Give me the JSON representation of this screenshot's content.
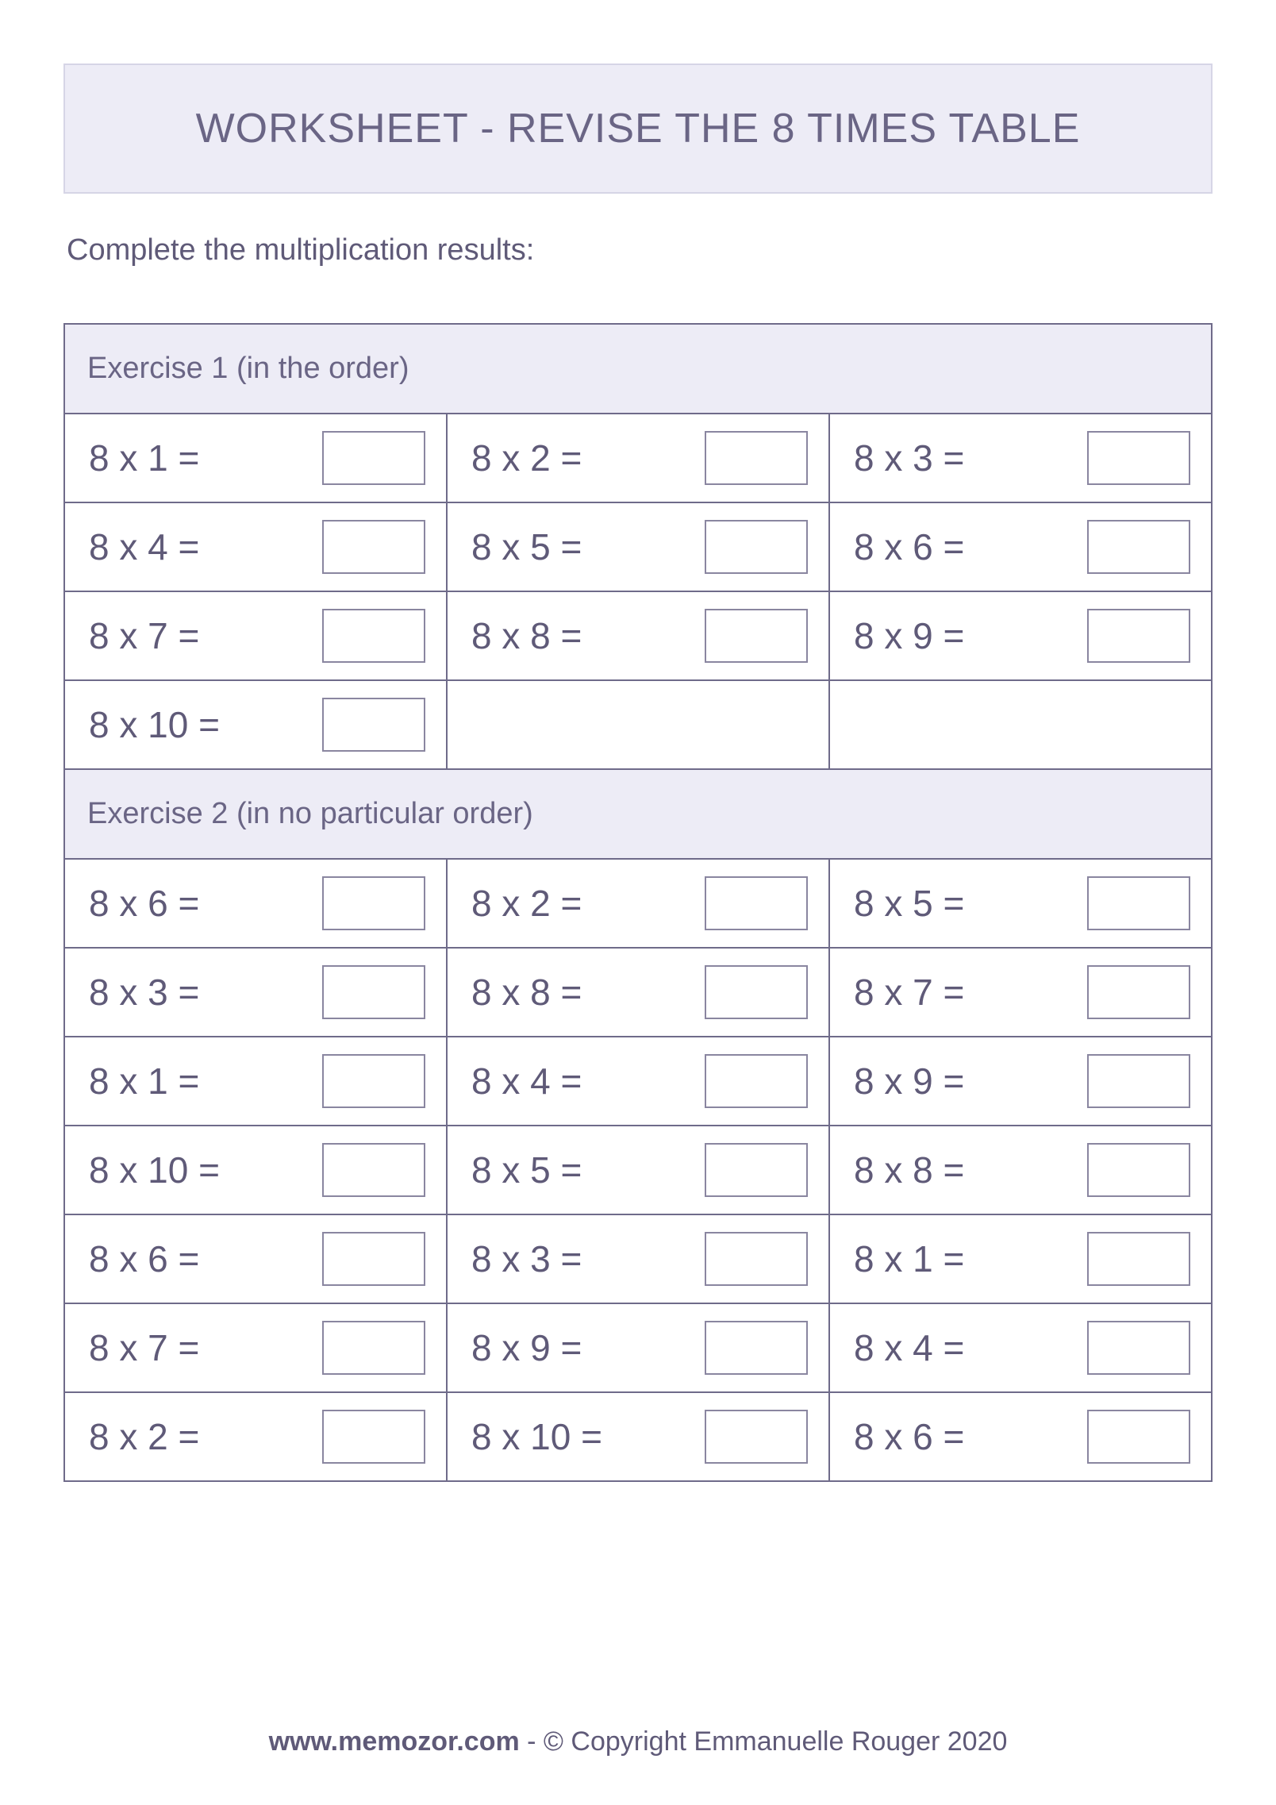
{
  "colors": {
    "page_bg": "#ffffff",
    "header_bg": "#edecf6",
    "header_border": "#d6d5e6",
    "table_border": "#6f6b8a",
    "text_primary": "#6a6585",
    "text_body": "#5f5a78",
    "answer_box_border": "#8a86a0"
  },
  "typography": {
    "title_fontsize": 52,
    "instructions_fontsize": 38,
    "exercise_header_fontsize": 38,
    "cell_fontsize": 46,
    "footer_fontsize": 34
  },
  "title": "WORKSHEET - REVISE THE 8 TIMES TABLE",
  "instructions": "Complete the multiplication results:",
  "exercises": [
    {
      "label": "Exercise 1 (in the order)",
      "rows": [
        [
          "8 x 1 =",
          "8 x 2 =",
          "8 x 3 ="
        ],
        [
          "8 x 4 =",
          "8 x 5 =",
          "8 x 6 ="
        ],
        [
          "8 x 7 =",
          "8 x 8 =",
          "8 x 9 ="
        ],
        [
          "8 x 10 =",
          "",
          ""
        ]
      ]
    },
    {
      "label": "Exercise 2 (in no particular order)",
      "rows": [
        [
          "8 x 6 =",
          "8 x 2 =",
          "8 x 5 ="
        ],
        [
          "8 x 3 =",
          "8 x 8 =",
          "8 x 7 ="
        ],
        [
          "8 x 1 =",
          "8 x 4 =",
          "8 x 9 ="
        ],
        [
          "8 x 10 =",
          "8 x 5 =",
          "8 x 8 ="
        ],
        [
          "8 x 6 =",
          "8 x 3 =",
          "8 x 1 ="
        ],
        [
          "8 x 7 =",
          "8 x 9 =",
          "8 x 4 ="
        ],
        [
          "8 x 2 =",
          "8 x 10 =",
          "8 x 6 ="
        ]
      ]
    }
  ],
  "footer": {
    "site": "www.memozor.com",
    "rest": " - © Copyright Emmanuelle Rouger 2020"
  }
}
